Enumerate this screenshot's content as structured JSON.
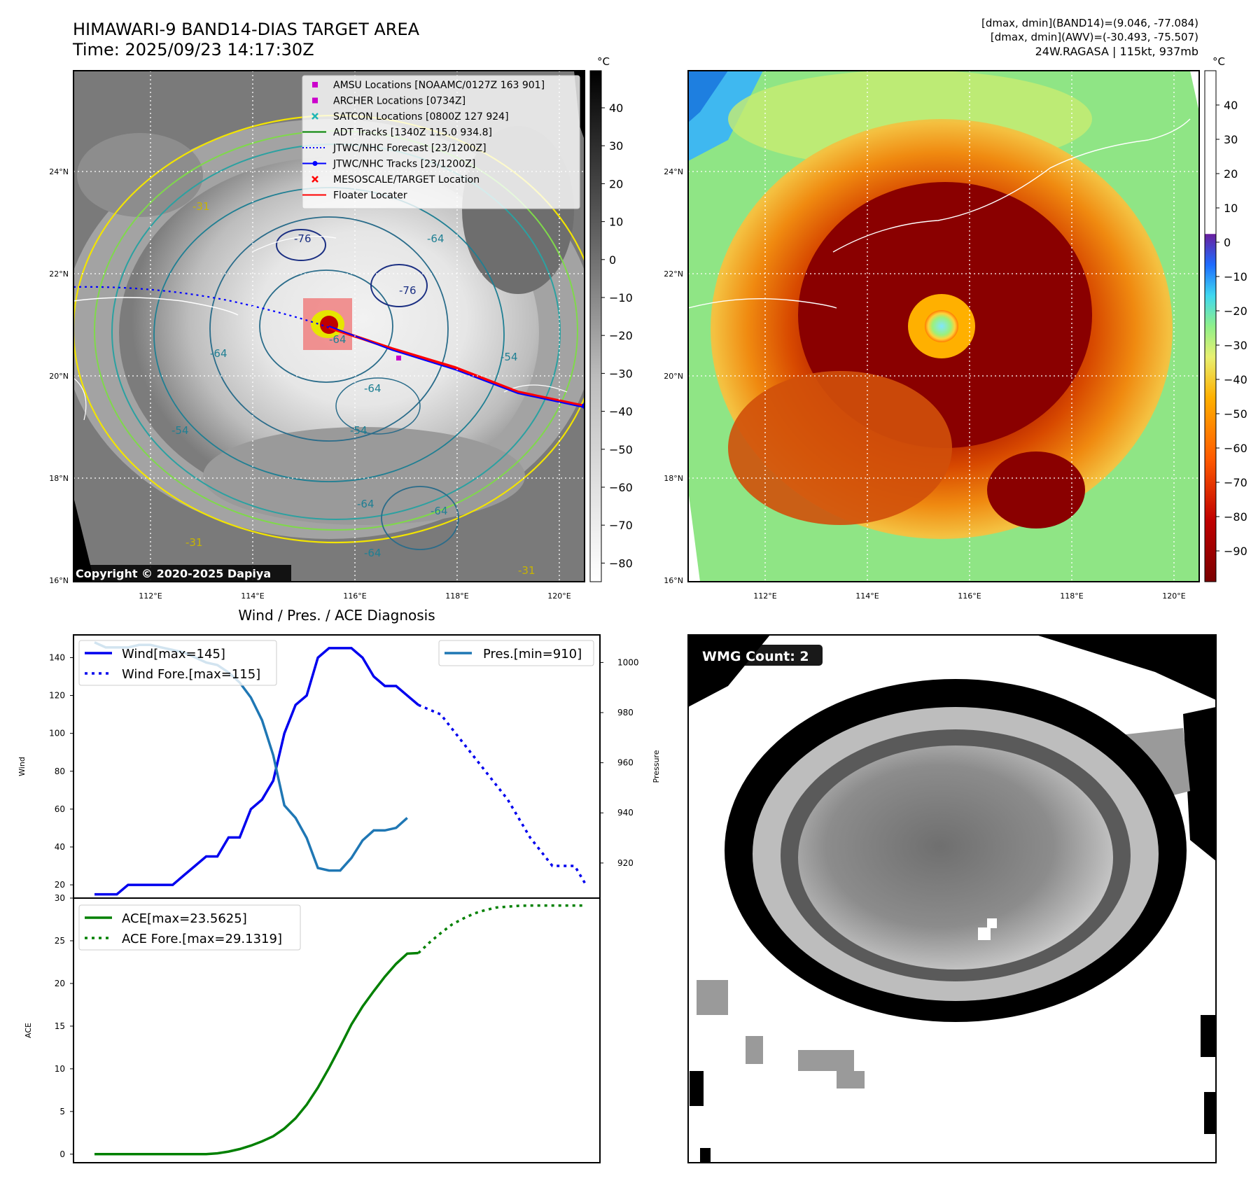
{
  "header": {
    "title_line1": "HIMAWARI-9 BAND14-DIAS TARGET AREA",
    "title_line2": "Time: 2025/09/23 14:17:30Z",
    "info_line1": "[dmax, dmin](BAND14)=(9.046, -77.084)",
    "info_line2": "[dmax, dmin](AWV)=(-30.493, -75.507)",
    "info_line3": "24W.RAGASA | 115kt, 937mb"
  },
  "map_axes": {
    "lon_ticks": [
      "112°E",
      "114°E",
      "116°E",
      "118°E",
      "120°E"
    ],
    "lat_ticks": [
      "24°N",
      "22°N",
      "20°N",
      "18°N",
      "16°N"
    ]
  },
  "map1": {
    "copyright": "Copyright © 2020-2025 Dapiya",
    "contour_labels": [
      "-64",
      "-76",
      "-64",
      "-76",
      "-54",
      "-64",
      "-54",
      "-64",
      "-54",
      "-64",
      "-31",
      "-31",
      "-31",
      "-64",
      "-64"
    ],
    "legend": [
      {
        "label": "AMSU Locations [NOAAMC/0127Z 163 901]",
        "marker": "square",
        "color": "#cc00cc"
      },
      {
        "label": "ARCHER Locations [0734Z]",
        "marker": "square",
        "color": "#cc00cc"
      },
      {
        "label": "SATCON Locations [0800Z 127 924]",
        "marker": "x",
        "color": "#1fb5b5"
      },
      {
        "label": "ADT Tracks [1340Z 115.0 934.8]",
        "marker": "line",
        "color": "#008000"
      },
      {
        "label": "JTWC/NHC Forecast [23/1200Z]",
        "marker": "dotted",
        "color": "#0000ff"
      },
      {
        "label": "JTWC/NHC Tracks [23/1200Z]",
        "marker": "line-dot",
        "color": "#0000ff"
      },
      {
        "label": "MESOSCALE/TARGET Location",
        "marker": "x",
        "color": "#ff0000"
      },
      {
        "label": "Floater Locater",
        "marker": "line",
        "color": "#ff0000"
      }
    ]
  },
  "colorbar1": {
    "unit": "°C",
    "ticks": [
      "40",
      "30",
      "20",
      "10",
      "0",
      "−10",
      "−20",
      "−30",
      "−40",
      "−50",
      "−60",
      "−70",
      "−80"
    ]
  },
  "colorbar2": {
    "unit": "°C",
    "ticks": [
      "40",
      "30",
      "20",
      "10",
      "0",
      "−10",
      "−20",
      "−30",
      "−40",
      "−50",
      "−60",
      "−70",
      "−80",
      "−90"
    ]
  },
  "wmg": {
    "label": "WMG Count: 2"
  },
  "chart_data": [
    {
      "type": "line",
      "title": "Wind / Pres. / ACE Diagnosis",
      "ylabel": "Wind",
      "y2label": "Pressure",
      "ylim": [
        13,
        152
      ],
      "y2lim": [
        906,
        1011
      ],
      "yticks": [
        20,
        40,
        60,
        80,
        100,
        120,
        140
      ],
      "y2ticks": [
        920,
        940,
        960,
        980,
        1000
      ],
      "series": [
        {
          "name": "Wind[max=145]",
          "axis": "left",
          "style": "solid",
          "color": "#0000ee",
          "x": [
            0,
            1,
            2,
            3,
            4,
            5,
            6,
            7,
            8,
            9,
            10,
            11,
            12,
            13,
            14,
            15,
            16,
            17,
            18,
            19,
            20,
            21,
            22,
            23,
            24,
            25,
            26,
            27,
            28,
            29,
            30
          ],
          "values": [
            15,
            15,
            15,
            20,
            20,
            20,
            20,
            20,
            25,
            30,
            35,
            35,
            45,
            45,
            60,
            65,
            75,
            100,
            115,
            120,
            140,
            145,
            145,
            145,
            140,
            130,
            125,
            125,
            120,
            115,
            null
          ]
        },
        {
          "name": "Wind Fore.[max=115]",
          "axis": "left",
          "style": "dotted",
          "color": "#0000ee",
          "x": [
            29,
            31,
            33,
            35,
            37,
            39,
            41,
            43,
            44
          ],
          "values": [
            115,
            110,
            95,
            80,
            65,
            45,
            30,
            30,
            20
          ]
        },
        {
          "name": "Pres.[min=910]",
          "axis": "right",
          "style": "solid",
          "color": "#1f77b4",
          "x": [
            0,
            1,
            2,
            3,
            4,
            5,
            6,
            7,
            8,
            9,
            10,
            11,
            12,
            13,
            14,
            15,
            16,
            17,
            18,
            19,
            20,
            21,
            22,
            23,
            24,
            25,
            26,
            27,
            28,
            29
          ],
          "values": [
            1008,
            1006,
            1006,
            1006,
            1007,
            1007,
            1006,
            1005,
            1004,
            1002,
            1000,
            999,
            996,
            992,
            986,
            977,
            963,
            943,
            938,
            930,
            918,
            917,
            917,
            922,
            929,
            933,
            933,
            934,
            938,
            null
          ]
        }
      ]
    },
    {
      "type": "line",
      "ylabel": "ACE",
      "ylim": [
        -1,
        30
      ],
      "yticks": [
        0,
        5,
        10,
        15,
        20,
        25,
        30
      ],
      "series": [
        {
          "name": "ACE[max=23.5625]",
          "style": "solid",
          "color": "#008000",
          "x": [
            0,
            2,
            4,
            6,
            8,
            10,
            11,
            12,
            13,
            14,
            15,
            16,
            17,
            18,
            19,
            20,
            21,
            22,
            23,
            24,
            25,
            26,
            27,
            28,
            29
          ],
          "values": [
            0,
            0,
            0,
            0,
            0,
            0,
            0.1,
            0.3,
            0.6,
            1.0,
            1.5,
            2.1,
            3.0,
            4.2,
            5.8,
            7.8,
            10.1,
            12.6,
            15.2,
            17.3,
            19.1,
            20.8,
            22.3,
            23.5,
            23.56
          ]
        },
        {
          "name": "ACE Fore.[max=29.1319]",
          "style": "dotted",
          "color": "#008000",
          "x": [
            29,
            30,
            31,
            32,
            33,
            34,
            35,
            36,
            37,
            38,
            39,
            40,
            41,
            42,
            43,
            44
          ],
          "values": [
            23.56,
            24.8,
            25.9,
            26.9,
            27.6,
            28.2,
            28.6,
            28.9,
            29.0,
            29.1,
            29.13,
            29.13,
            29.13,
            29.13,
            29.13,
            29.13
          ]
        }
      ]
    }
  ]
}
